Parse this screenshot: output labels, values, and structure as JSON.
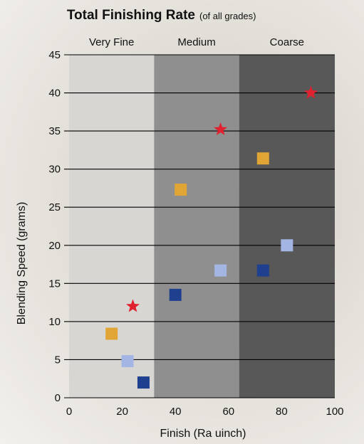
{
  "chart_data": {
    "type": "scatter",
    "title": "Total Finishing Rate",
    "subtitle": "(of all grades)",
    "xlabel": "Finish (Ra uinch)",
    "ylabel": "Blending Speed (grams)",
    "xlim": [
      0,
      100
    ],
    "ylim": [
      0,
      45
    ],
    "xticks": [
      "0",
      "20",
      "40",
      "60",
      "80",
      "100"
    ],
    "yticks": [
      "0",
      "5",
      "10",
      "15",
      "20",
      "25",
      "30",
      "35",
      "40",
      "45"
    ],
    "grid": "horizontal",
    "regions": [
      {
        "label": "Very Fine",
        "x_start": 0,
        "x_end": 32,
        "color": "#d8d6d3"
      },
      {
        "label": "Medium",
        "x_start": 32,
        "x_end": 64,
        "color": "#8f8f8f"
      },
      {
        "label": "Coarse",
        "x_start": 64,
        "x_end": 100,
        "color": "#585858"
      }
    ],
    "series": [
      {
        "marker": "square",
        "color": "#1f3f8f",
        "points": [
          {
            "x": 28,
            "y": 2
          },
          {
            "x": 40,
            "y": 13.5
          },
          {
            "x": 73,
            "y": 16.7
          }
        ]
      },
      {
        "marker": "square",
        "color": "#a3b5e3",
        "points": [
          {
            "x": 22,
            "y": 4.8
          },
          {
            "x": 57,
            "y": 16.7
          },
          {
            "x": 82,
            "y": 20
          }
        ]
      },
      {
        "marker": "square",
        "color": "#e0a535",
        "points": [
          {
            "x": 16,
            "y": 8.4
          },
          {
            "x": 42,
            "y": 27.3
          },
          {
            "x": 73,
            "y": 31.4
          }
        ]
      },
      {
        "marker": "star",
        "color": "#e0212f",
        "points": [
          {
            "x": 24,
            "y": 12
          },
          {
            "x": 57,
            "y": 35.2
          },
          {
            "x": 91,
            "y": 40
          }
        ]
      }
    ]
  }
}
